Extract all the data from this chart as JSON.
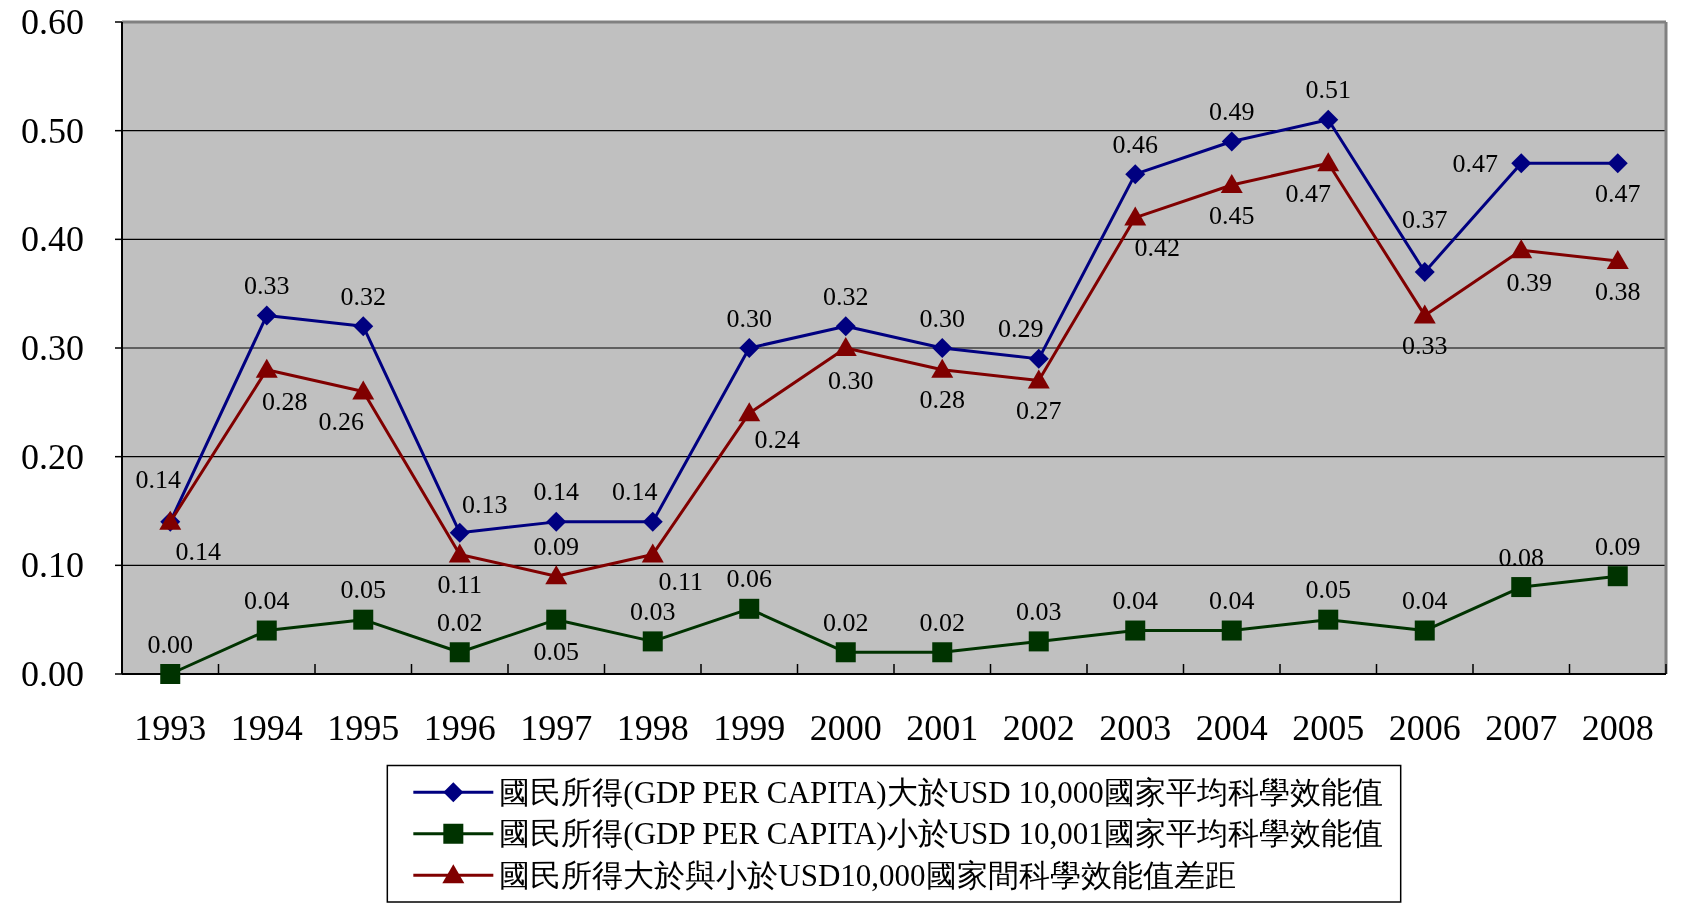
{
  "chart_data": {
    "type": "line",
    "categories": [
      "1993",
      "1994",
      "1995",
      "1996",
      "1997",
      "1998",
      "1999",
      "2000",
      "2001",
      "2002",
      "2003",
      "2004",
      "2005",
      "2006",
      "2007",
      "2008"
    ],
    "series": [
      {
        "name": "國民所得(GDP PER CAPITA)大於USD 10,000國家平均科學效能值",
        "color": "#000080",
        "marker": "diamond",
        "values": [
          0.14,
          0.33,
          0.32,
          0.13,
          0.14,
          0.14,
          0.3,
          0.32,
          0.3,
          0.29,
          0.46,
          0.49,
          0.51,
          0.37,
          0.47,
          0.47
        ],
        "value_labels": [
          "0.14",
          "0.33",
          "0.32",
          "0.13",
          "0.14",
          "0.14",
          "0.30",
          "0.32",
          "0.30",
          "0.29",
          "0.46",
          "0.49",
          "0.51",
          "0.37",
          "0.47",
          "0.47"
        ]
      },
      {
        "name": "國民所得(GDP PER CAPITA)小於USD 10,001國家平均科學效能值",
        "color": "#003300",
        "marker": "square",
        "values": [
          0.0,
          0.04,
          0.05,
          0.02,
          0.05,
          0.03,
          0.06,
          0.02,
          0.02,
          0.03,
          0.04,
          0.04,
          0.05,
          0.04,
          0.08,
          0.09
        ],
        "value_labels": [
          "0.00",
          "0.04",
          "0.05",
          "0.02",
          "0.05",
          "0.03",
          "0.06",
          "0.02",
          "0.02",
          "0.03",
          "0.04",
          "0.04",
          "0.05",
          "0.04",
          "0.08",
          "0.09"
        ]
      },
      {
        "name": "國民所得大於與小於USD10,000國家間科學效能值差距",
        "color": "#800000",
        "marker": "triangle",
        "values": [
          0.14,
          0.28,
          0.26,
          0.11,
          0.09,
          0.11,
          0.24,
          0.3,
          0.28,
          0.27,
          0.42,
          0.45,
          0.47,
          0.33,
          0.39,
          0.38
        ],
        "value_labels": [
          "0.14",
          "0.28",
          "0.26",
          "0.11",
          "0.09",
          "0.11",
          "0.24",
          "0.30",
          "0.28",
          "0.27",
          "0.42",
          "0.45",
          "0.47",
          "0.33",
          "0.39",
          "0.38"
        ]
      }
    ],
    "ylim": [
      0,
      0.6
    ],
    "yticks": [
      {
        "value": 0,
        "label": "0.00"
      },
      {
        "value": 0.1,
        "label": "0.10"
      },
      {
        "value": 0.2,
        "label": "0.20"
      },
      {
        "value": 0.3,
        "label": "0.30"
      },
      {
        "value": 0.4,
        "label": "0.40"
      },
      {
        "value": 0.5,
        "label": "0.50"
      },
      {
        "value": 0.6,
        "label": "0.60"
      }
    ],
    "grid": "y",
    "legend": "bottom",
    "line_style": "solid"
  }
}
